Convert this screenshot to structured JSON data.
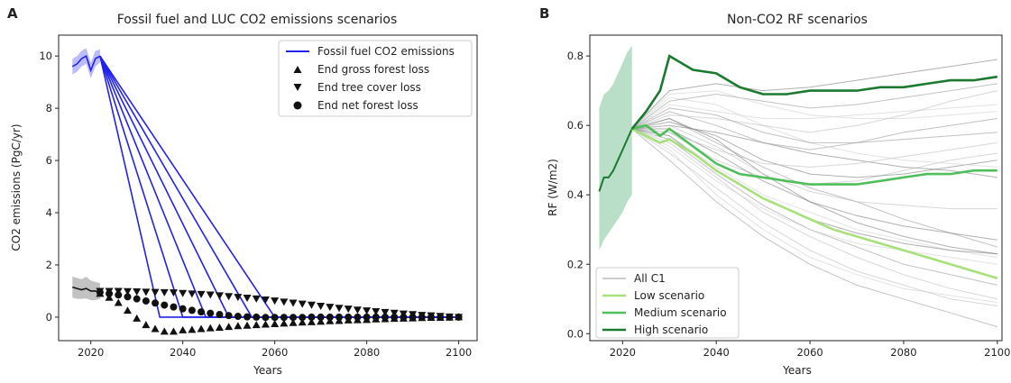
{
  "chart_data": [
    {
      "panel": "A",
      "type": "line",
      "title": "Fossil fuel and LUC CO2 emissions scenarios",
      "xlabel": "Years",
      "ylabel": "CO2 emissions (PgC/yr)",
      "xlim": [
        2013,
        2104
      ],
      "ylim": [
        -0.9,
        10.8
      ],
      "xticks": [
        2020,
        2040,
        2060,
        2080,
        2100
      ],
      "yticks": [
        0,
        2,
        4,
        6,
        8,
        10
      ],
      "legend_position": "top-right",
      "colors": {
        "fossil": "#2222ee",
        "luc": "#111111"
      },
      "legend": [
        {
          "label": "Fossil fuel CO2 emissions",
          "marker": "line"
        },
        {
          "label": "End gross forest loss",
          "marker": "triangle-up"
        },
        {
          "label": "End tree cover loss",
          "marker": "triangle-down"
        },
        {
          "label": "End net forest loss",
          "marker": "circle"
        }
      ],
      "fossil_historic": {
        "x": [
          2016,
          2017,
          2018,
          2019,
          2020,
          2021,
          2022
        ],
        "y": [
          9.6,
          9.7,
          9.9,
          10.0,
          9.45,
          9.9,
          10.0
        ],
        "band_low": [
          9.3,
          9.4,
          9.6,
          9.7,
          9.15,
          9.6,
          9.75
        ],
        "band_high": [
          9.9,
          10.0,
          10.2,
          10.3,
          9.75,
          10.2,
          10.25
        ]
      },
      "fossil_scenarios": [
        {
          "start": [
            2022,
            10.0
          ],
          "zero_year": 2035
        },
        {
          "start": [
            2022,
            10.0
          ],
          "zero_year": 2040
        },
        {
          "start": [
            2022,
            10.0
          ],
          "zero_year": 2045
        },
        {
          "start": [
            2022,
            10.0
          ],
          "zero_year": 2050
        },
        {
          "start": [
            2022,
            10.0
          ],
          "zero_year": 2055
        },
        {
          "start": [
            2022,
            10.0
          ],
          "zero_year": 2060
        }
      ],
      "fossil_end": {
        "x": 2100,
        "y": 0
      },
      "luc_historic": {
        "x": [
          2016,
          2017,
          2018,
          2019,
          2020,
          2021,
          2022
        ],
        "y": [
          1.15,
          1.1,
          1.05,
          1.1,
          1.0,
          1.0,
          0.95
        ],
        "band_low": [
          0.75,
          0.7,
          0.7,
          0.72,
          0.65,
          0.65,
          0.7
        ],
        "band_high": [
          1.55,
          1.5,
          1.45,
          1.55,
          1.4,
          1.35,
          1.3
        ]
      },
      "end_gross_forest_loss": {
        "x": [
          2022,
          2024,
          2026,
          2028,
          2030,
          2032,
          2034,
          2036,
          2038,
          2040,
          2042,
          2044,
          2046,
          2048,
          2050,
          2052,
          2054,
          2056,
          2058,
          2060,
          2062,
          2064,
          2066,
          2068,
          2070,
          2072,
          2074,
          2076,
          2078,
          2080,
          2082,
          2084,
          2086,
          2088,
          2090,
          2092,
          2094,
          2096,
          2098,
          2100
        ],
        "y": [
          0.9,
          0.75,
          0.55,
          0.25,
          -0.05,
          -0.3,
          -0.45,
          -0.55,
          -0.55,
          -0.5,
          -0.48,
          -0.45,
          -0.42,
          -0.4,
          -0.37,
          -0.34,
          -0.32,
          -0.3,
          -0.28,
          -0.26,
          -0.24,
          -0.22,
          -0.2,
          -0.19,
          -0.17,
          -0.15,
          -0.14,
          -0.12,
          -0.11,
          -0.1,
          -0.08,
          -0.07,
          -0.06,
          -0.05,
          -0.04,
          -0.03,
          -0.02,
          -0.02,
          -0.01,
          0.0
        ]
      },
      "end_tree_cover_loss": {
        "x": [
          2022,
          2024,
          2026,
          2028,
          2030,
          2032,
          2034,
          2036,
          2038,
          2040,
          2042,
          2044,
          2046,
          2048,
          2050,
          2052,
          2054,
          2056,
          2058,
          2060,
          2062,
          2064,
          2066,
          2068,
          2070,
          2072,
          2074,
          2076,
          2078,
          2080,
          2082,
          2084,
          2086,
          2088,
          2090,
          2092,
          2094,
          2096,
          2098,
          2100
        ],
        "y": [
          1.0,
          1.0,
          1.0,
          0.99,
          0.98,
          0.97,
          0.96,
          0.95,
          0.94,
          0.92,
          0.9,
          0.88,
          0.86,
          0.83,
          0.8,
          0.77,
          0.74,
          0.71,
          0.67,
          0.63,
          0.59,
          0.55,
          0.51,
          0.47,
          0.43,
          0.39,
          0.35,
          0.32,
          0.28,
          0.25,
          0.22,
          0.19,
          0.16,
          0.13,
          0.11,
          0.08,
          0.06,
          0.04,
          0.02,
          0.0
        ]
      },
      "end_net_forest_loss": {
        "x": [
          2022,
          2024,
          2026,
          2028,
          2030,
          2032,
          2034,
          2036,
          2038,
          2040,
          2042,
          2044,
          2046,
          2048,
          2050,
          2052,
          2054,
          2056,
          2058,
          2060,
          2062,
          2064,
          2066,
          2068,
          2070,
          2072,
          2074,
          2076,
          2078,
          2080,
          2082,
          2084,
          2086,
          2088,
          2090,
          2092,
          2094,
          2096,
          2098,
          2100
        ],
        "y": [
          0.95,
          0.9,
          0.85,
          0.78,
          0.7,
          0.62,
          0.54,
          0.46,
          0.39,
          0.32,
          0.26,
          0.2,
          0.15,
          0.1,
          0.06,
          0.03,
          0.01,
          0.0,
          -0.01,
          -0.01,
          -0.01,
          -0.01,
          -0.01,
          0.0,
          0.0,
          0.0,
          0.0,
          0.0,
          0.0,
          0.0,
          0.0,
          0.0,
          0.0,
          0.0,
          0.0,
          0.0,
          0.0,
          0.0,
          0.0,
          0.0
        ]
      }
    },
    {
      "panel": "B",
      "type": "line",
      "title": "Non-CO2 RF scenarios",
      "xlabel": "Years",
      "ylabel": "RF (W/m2)",
      "xlim": [
        2013,
        2101
      ],
      "ylim": [
        -0.02,
        0.86
      ],
      "xticks": [
        2020,
        2040,
        2060,
        2080,
        2100
      ],
      "yticks": [
        0.0,
        0.2,
        0.4,
        0.6,
        0.8
      ],
      "legend_position": "lower-left",
      "colors": {
        "all_c1": "#aaaaaa",
        "low": "#a8e07c",
        "medium": "#4fbf5a",
        "high": "#1b7a2f",
        "hist_band": "#7fc59a"
      },
      "legend": [
        {
          "label": "All C1",
          "color": "#cccccc"
        },
        {
          "label": "Low scenario",
          "color": "#a8e07c"
        },
        {
          "label": "Medium scenario",
          "color": "#4fbf5a"
        },
        {
          "label": "High scenario",
          "color": "#1b7a2f"
        }
      ],
      "historic": {
        "x": [
          2015,
          2016,
          2017,
          2018,
          2019,
          2020,
          2021,
          2022
        ],
        "y": [
          0.41,
          0.45,
          0.45,
          0.47,
          0.5,
          0.53,
          0.56,
          0.59
        ],
        "band_low": [
          0.24,
          0.27,
          0.29,
          0.31,
          0.33,
          0.35,
          0.38,
          0.4
        ],
        "band_high": [
          0.65,
          0.69,
          0.7,
          0.72,
          0.75,
          0.78,
          0.81,
          0.83
        ]
      },
      "low_scenario": {
        "x": [
          2022,
          2025,
          2028,
          2030,
          2035,
          2040,
          2045,
          2050,
          2055,
          2060,
          2065,
          2070,
          2075,
          2080,
          2085,
          2090,
          2095,
          2100
        ],
        "y": [
          0.59,
          0.57,
          0.55,
          0.56,
          0.52,
          0.47,
          0.43,
          0.39,
          0.36,
          0.33,
          0.3,
          0.28,
          0.26,
          0.24,
          0.22,
          0.2,
          0.18,
          0.16
        ]
      },
      "medium_scenario": {
        "x": [
          2022,
          2025,
          2028,
          2030,
          2035,
          2040,
          2045,
          2050,
          2055,
          2060,
          2065,
          2070,
          2075,
          2080,
          2085,
          2090,
          2095,
          2100
        ],
        "y": [
          0.59,
          0.6,
          0.57,
          0.59,
          0.54,
          0.49,
          0.46,
          0.45,
          0.44,
          0.43,
          0.43,
          0.43,
          0.44,
          0.45,
          0.46,
          0.46,
          0.47,
          0.47
        ]
      },
      "high_scenario": {
        "x": [
          2022,
          2025,
          2028,
          2030,
          2035,
          2040,
          2045,
          2050,
          2055,
          2060,
          2065,
          2070,
          2075,
          2080,
          2085,
          2090,
          2095,
          2100
        ],
        "y": [
          0.59,
          0.64,
          0.7,
          0.8,
          0.76,
          0.75,
          0.71,
          0.69,
          0.69,
          0.7,
          0.7,
          0.7,
          0.71,
          0.71,
          0.72,
          0.73,
          0.73,
          0.74
        ]
      },
      "all_c1_x": [
        2022,
        2030,
        2040,
        2050,
        2060,
        2070,
        2080,
        2090,
        2100
      ],
      "all_c1_series": [
        [
          0.59,
          0.62,
          0.55,
          0.48,
          0.42,
          0.38,
          0.33,
          0.29,
          0.25
        ],
        [
          0.59,
          0.55,
          0.45,
          0.35,
          0.28,
          0.22,
          0.17,
          0.13,
          0.1
        ],
        [
          0.59,
          0.6,
          0.58,
          0.55,
          0.52,
          0.5,
          0.48,
          0.47,
          0.45
        ],
        [
          0.59,
          0.66,
          0.64,
          0.62,
          0.62,
          0.63,
          0.64,
          0.65,
          0.66
        ],
        [
          0.59,
          0.5,
          0.38,
          0.28,
          0.2,
          0.14,
          0.1,
          0.06,
          0.02
        ],
        [
          0.59,
          0.58,
          0.5,
          0.45,
          0.43,
          0.44,
          0.47,
          0.5,
          0.52
        ],
        [
          0.59,
          0.7,
          0.72,
          0.7,
          0.71,
          0.73,
          0.75,
          0.77,
          0.79
        ],
        [
          0.59,
          0.57,
          0.48,
          0.4,
          0.35,
          0.3,
          0.27,
          0.24,
          0.22
        ],
        [
          0.59,
          0.64,
          0.6,
          0.55,
          0.53,
          0.55,
          0.58,
          0.6,
          0.62
        ],
        [
          0.59,
          0.52,
          0.42,
          0.32,
          0.24,
          0.18,
          0.14,
          0.1,
          0.08
        ],
        [
          0.59,
          0.61,
          0.57,
          0.5,
          0.46,
          0.45,
          0.46,
          0.48,
          0.5
        ],
        [
          0.59,
          0.68,
          0.66,
          0.6,
          0.55,
          0.52,
          0.5,
          0.49,
          0.48
        ],
        [
          0.59,
          0.56,
          0.46,
          0.37,
          0.3,
          0.25,
          0.2,
          0.17,
          0.14
        ],
        [
          0.59,
          0.63,
          0.62,
          0.6,
          0.58,
          0.6,
          0.63,
          0.67,
          0.7
        ],
        [
          0.59,
          0.59,
          0.52,
          0.44,
          0.38,
          0.34,
          0.31,
          0.29,
          0.27
        ],
        [
          0.59,
          0.54,
          0.44,
          0.36,
          0.3,
          0.26,
          0.24,
          0.22,
          0.2
        ],
        [
          0.59,
          0.67,
          0.69,
          0.67,
          0.65,
          0.66,
          0.68,
          0.7,
          0.72
        ],
        [
          0.59,
          0.58,
          0.53,
          0.49,
          0.48,
          0.49,
          0.51,
          0.53,
          0.55
        ],
        [
          0.59,
          0.62,
          0.56,
          0.46,
          0.38,
          0.32,
          0.28,
          0.25,
          0.23
        ],
        [
          0.59,
          0.53,
          0.4,
          0.3,
          0.22,
          0.17,
          0.13,
          0.11,
          0.09
        ],
        [
          0.59,
          0.65,
          0.63,
          0.58,
          0.55,
          0.55,
          0.56,
          0.57,
          0.58
        ],
        [
          0.59,
          0.6,
          0.54,
          0.46,
          0.41,
          0.38,
          0.37,
          0.36,
          0.36
        ],
        [
          0.59,
          0.57,
          0.47,
          0.39,
          0.33,
          0.29,
          0.26,
          0.24,
          0.23
        ],
        [
          0.59,
          0.69,
          0.7,
          0.66,
          0.63,
          0.62,
          0.62,
          0.63,
          0.64
        ]
      ]
    }
  ],
  "panel_labels": [
    "A",
    "B"
  ]
}
